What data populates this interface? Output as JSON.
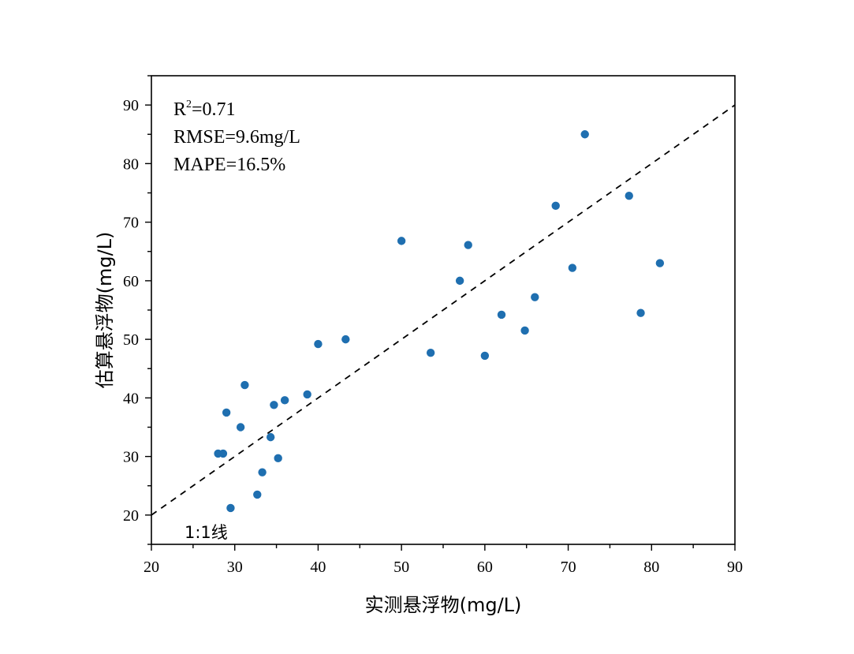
{
  "chart_data": {
    "type": "scatter",
    "xlabel": "实测悬浮物(mg/L)",
    "ylabel": "估算悬浮物(mg/L)",
    "xlim": [
      20,
      90
    ],
    "ylim": [
      15,
      95
    ],
    "xticks": [
      20,
      30,
      40,
      50,
      60,
      70,
      80,
      90
    ],
    "yticks": [
      20,
      30,
      40,
      50,
      60,
      70,
      80,
      90
    ],
    "grid": false,
    "point_color": "#1f6fb0",
    "stats": {
      "r2_prefix": "R",
      "r2_sup": "2",
      "r2_value": "=0.71",
      "rmse": "RMSE=9.6mg/L",
      "mape": "MAPE=16.5%"
    },
    "reference_line": {
      "label": "1:1线",
      "style": "dashed"
    },
    "series": [
      {
        "x": [
          28.0,
          28.6,
          29.0,
          29.5,
          30.7,
          31.2,
          32.7,
          33.3,
          34.3,
          34.7,
          35.2,
          36.0,
          38.7,
          40.0,
          43.3,
          50.0,
          53.5,
          57.0,
          58.0,
          60.0,
          62.0,
          64.8,
          66.0,
          68.5,
          70.5,
          72.0,
          77.3,
          78.7,
          81.0
        ],
        "y": [
          30.5,
          30.5,
          37.5,
          21.2,
          35.0,
          42.2,
          23.5,
          27.3,
          33.3,
          38.8,
          29.7,
          39.6,
          40.6,
          49.2,
          50.0,
          66.8,
          47.7,
          60.0,
          66.1,
          47.2,
          54.2,
          51.5,
          57.2,
          72.8,
          62.2,
          85.0,
          74.5,
          54.5,
          63.0
        ]
      }
    ]
  }
}
